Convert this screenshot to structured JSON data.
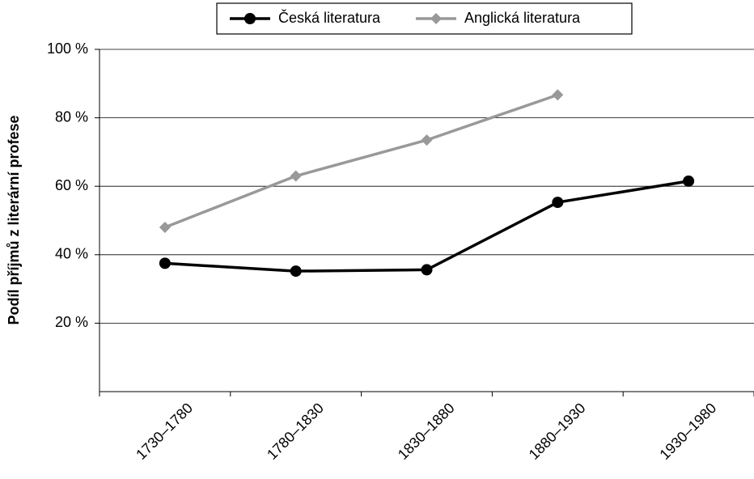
{
  "chart_data": {
    "type": "line",
    "y_label": "Podíl příjmů z literární profese",
    "categories": [
      "1730–1780",
      "1780–1830",
      "1830–1880",
      "1880–1930",
      "1930–1980"
    ],
    "series": [
      {
        "name": "Česká literatura",
        "color": "#000000",
        "marker": "circle",
        "values": [
          37.5,
          35.2,
          35.6,
          55.3,
          61.5
        ]
      },
      {
        "name": "Anglická literatura",
        "color": "#999999",
        "marker": "diamond",
        "values": [
          48,
          63,
          73.5,
          86.7,
          null
        ]
      }
    ],
    "ylim": [
      0,
      100
    ],
    "yticks": [
      {
        "value": 20,
        "label": "20 %"
      },
      {
        "value": 40,
        "label": "40 %"
      },
      {
        "value": 60,
        "label": "60 %"
      },
      {
        "value": 80,
        "label": "80 %"
      },
      {
        "value": 100,
        "label": "100 %"
      }
    ],
    "grid": true,
    "legend": "top"
  }
}
